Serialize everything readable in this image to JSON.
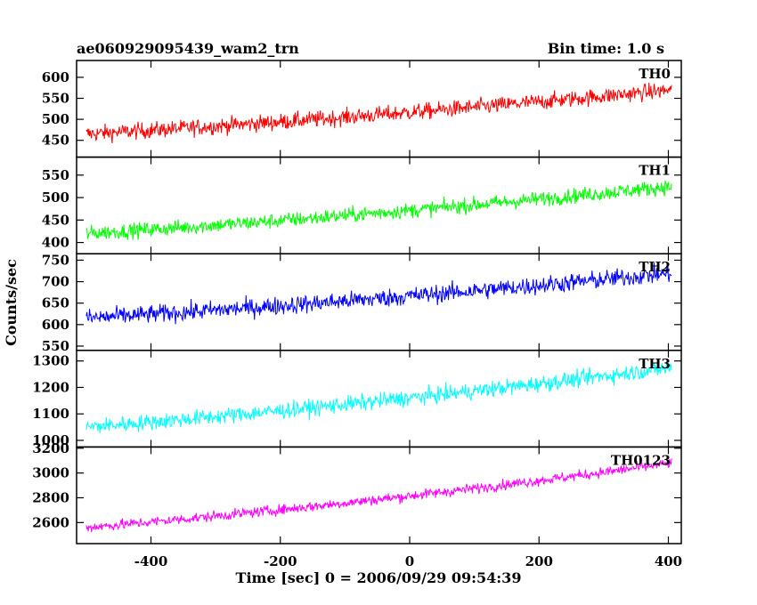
{
  "header": {
    "left_title": "ae060929095439_wam2_trn",
    "right_title": "Bin time: 1.0 s"
  },
  "chart_data": {
    "type": "line",
    "title": "ae060929095439_wam2_trn",
    "subtitle": "Bin time: 1.0 s",
    "xlabel": "Time [sec] 0 = 2006/09/29 09:54:39",
    "ylabel": "Counts/sec",
    "xlim": [
      -515,
      420
    ],
    "x_ticks": [
      -400,
      -200,
      0,
      200,
      400
    ],
    "x_range_data": [
      -500,
      405
    ],
    "grid": false,
    "panels": [
      {
        "name": "TH0",
        "color": "#ff0000",
        "ylim": [
          410,
          640
        ],
        "y_ticks": [
          450,
          500,
          550,
          600
        ],
        "trend_start": 465,
        "trend_end": 570,
        "noise_amplitude": 35
      },
      {
        "name": "TH1",
        "color": "#00ff00",
        "ylim": [
          375,
          590
        ],
        "y_ticks": [
          400,
          450,
          500,
          550
        ],
        "trend_start": 420,
        "trend_end": 525,
        "noise_amplitude": 30
      },
      {
        "name": "TH2",
        "color": "#0000ff",
        "ylim": [
          540,
          765
        ],
        "y_ticks": [
          550,
          600,
          650,
          700,
          750
        ],
        "trend_start": 615,
        "trend_end": 720,
        "noise_amplitude": 38
      },
      {
        "name": "TH3",
        "color": "#00ffff",
        "ylim": [
          975,
          1340
        ],
        "y_ticks": [
          1000,
          1100,
          1200,
          1300
        ],
        "trend_start": 1050,
        "trend_end": 1275,
        "noise_amplitude": 55
      },
      {
        "name": "TH0123",
        "color": "#ff00ff",
        "ylim": [
          2430,
          3210
        ],
        "y_ticks": [
          2600,
          2800,
          3000,
          3200
        ],
        "trend_start": 2560,
        "trend_end": 3080,
        "noise_amplitude": 75
      }
    ]
  }
}
